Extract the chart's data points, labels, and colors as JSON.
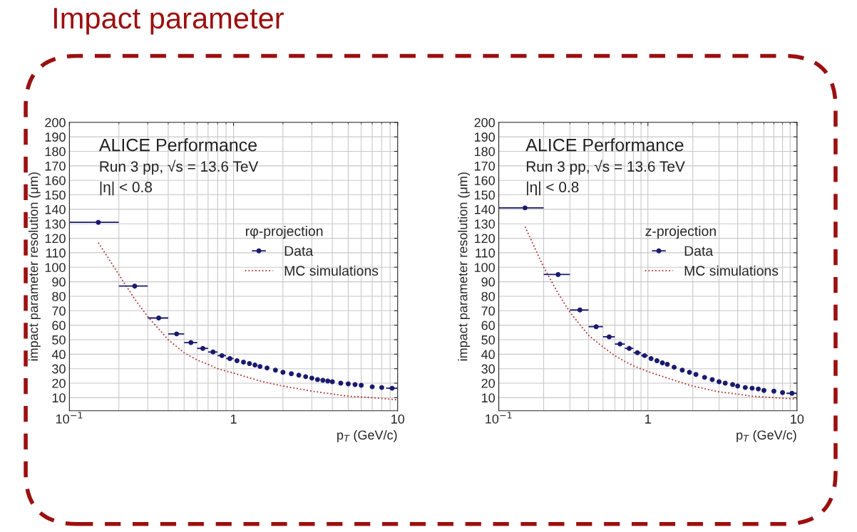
{
  "chart_data": [
    {
      "type": "scatter",
      "title": "Impact parameter",
      "xlabel": "p$_{T}$ (GeV/c)",
      "ylabel": "impact parameter resolution (μm)",
      "legend_title": "rφ-projection",
      "annotations": [
        "ALICE Performance",
        "Run 3 pp, √s = 13.6 TeV",
        "|η| < 0.8"
      ],
      "log": "x",
      "xlim": [
        0.1,
        10
      ],
      "xticks": [
        {
          "value": 0.1,
          "label": "10$^{−1}$"
        },
        1,
        10
      ],
      "ylim": [
        1,
        200
      ],
      "yticks": [
        10,
        20,
        30,
        40,
        50,
        60,
        70,
        80,
        90,
        100,
        110,
        120,
        130,
        140,
        150,
        160,
        170,
        180,
        190,
        200
      ],
      "grid": true,
      "legend": "center right",
      "series": [
        {
          "name": "Data",
          "color": "#1a1a6e",
          "marker": "circle",
          "x": [
            0.15,
            0.25,
            0.35,
            0.45,
            0.55,
            0.65,
            0.75,
            0.85,
            0.95,
            1.05,
            1.15,
            1.25,
            1.35,
            1.45,
            1.6,
            1.8,
            2.0,
            2.25,
            2.5,
            2.75,
            3.0,
            3.25,
            3.5,
            3.75,
            4.0,
            4.5,
            5.0,
            5.5,
            6.0,
            7.0,
            8.0,
            9.25
          ],
          "values": [
            131,
            87,
            65,
            54,
            48,
            44,
            41.5,
            39,
            37,
            35.5,
            34.5,
            33.5,
            32.5,
            31.5,
            30.5,
            29,
            27.5,
            26.5,
            25.5,
            24.5,
            23.5,
            22.5,
            22,
            21.5,
            21,
            20,
            19.5,
            19,
            18.5,
            17.5,
            17,
            16.5
          ],
          "xerrors": [
            0.05,
            0.05,
            0.05,
            0.05,
            0.05,
            0.05,
            0.05,
            0.05,
            0.05,
            null,
            null,
            null,
            null,
            null,
            null,
            null,
            null,
            null,
            null,
            null,
            null,
            null,
            null,
            null,
            null,
            null,
            null,
            null,
            null,
            null,
            null,
            0.75
          ]
        },
        {
          "name": "MC simulations",
          "type": "line",
          "color": "#b03030",
          "line_style": "dotted",
          "x": [
            0.15,
            0.2,
            0.25,
            0.3,
            0.4,
            0.5,
            0.6,
            0.7,
            0.8,
            1,
            1.5,
            2,
            3,
            4,
            5,
            7,
            10
          ],
          "values": [
            117,
            95,
            78,
            66,
            50,
            41,
            36,
            33,
            30,
            27,
            21,
            18,
            14.5,
            12.5,
            11,
            10,
            8.5
          ]
        }
      ]
    },
    {
      "type": "scatter",
      "xlabel": "p$_{T}$ (GeV/c)",
      "ylabel": "impact parameter resolution (μm)",
      "legend_title": "z-projection",
      "annotations": [
        "ALICE Performance",
        "Run 3 pp, √s = 13.6 TeV",
        "|η| < 0.8"
      ],
      "log": "x",
      "xlim": [
        0.1,
        10
      ],
      "xticks": [
        {
          "value": 0.1,
          "label": "10$^{−1}$"
        },
        1,
        10
      ],
      "ylim": [
        1,
        200
      ],
      "yticks": [
        10,
        20,
        30,
        40,
        50,
        60,
        70,
        80,
        90,
        100,
        110,
        120,
        130,
        140,
        150,
        160,
        170,
        180,
        190,
        200
      ],
      "grid": true,
      "legend": "center right",
      "series": [
        {
          "name": "Data",
          "color": "#1a1a6e",
          "marker": "circle",
          "x": [
            0.15,
            0.25,
            0.35,
            0.45,
            0.55,
            0.65,
            0.75,
            0.85,
            0.95,
            1.05,
            1.15,
            1.25,
            1.35,
            1.5,
            1.7,
            1.9,
            2.1,
            2.4,
            2.7,
            3.0,
            3.3,
            3.7,
            4.0,
            4.5,
            5.0,
            5.5,
            6.0,
            7.0,
            8.0,
            9.25
          ],
          "values": [
            141,
            95,
            70.5,
            59,
            52,
            47,
            44,
            41,
            39,
            37,
            35.5,
            34,
            33,
            31,
            29,
            27.5,
            26,
            24,
            22.5,
            21,
            20,
            19,
            18,
            17,
            16.5,
            16,
            15,
            14.5,
            13.5,
            13
          ],
          "xerrors": [
            0.05,
            0.05,
            0.05,
            0.05,
            0.05,
            0.05,
            0.05,
            0.05,
            0.05,
            null,
            null,
            null,
            null,
            null,
            null,
            null,
            null,
            null,
            null,
            null,
            null,
            null,
            null,
            null,
            null,
            null,
            null,
            null,
            null,
            0.75
          ]
        },
        {
          "name": "MC simulations",
          "type": "line",
          "color": "#b03030",
          "line_style": "dotted",
          "x": [
            0.15,
            0.2,
            0.25,
            0.3,
            0.4,
            0.5,
            0.6,
            0.7,
            0.8,
            1,
            1.5,
            2,
            3,
            4,
            5,
            7,
            10
          ],
          "values": [
            128,
            100,
            82,
            69,
            53,
            45,
            39,
            35,
            32,
            28,
            22,
            18,
            14,
            12.5,
            11,
            10,
            9
          ]
        }
      ]
    }
  ]
}
